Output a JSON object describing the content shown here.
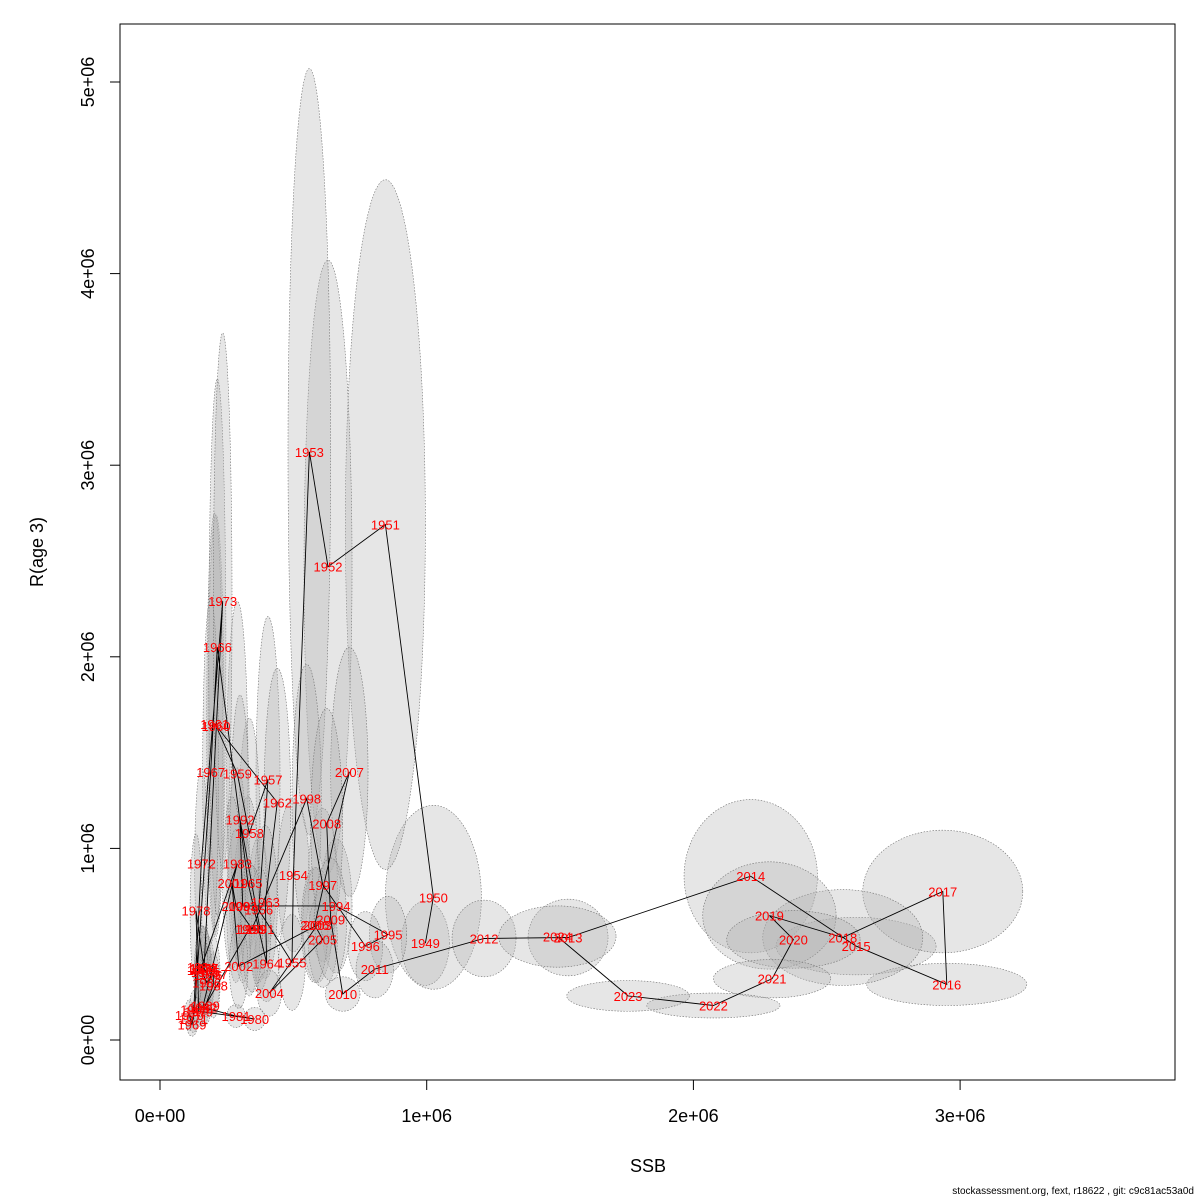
{
  "chart_data": {
    "type": "scatter",
    "title": "",
    "xlabel": "SSB",
    "ylabel": "R(age 3)",
    "xlim": [
      -150000,
      3800000
    ],
    "ylim": [
      -200000,
      5400000
    ],
    "x_ticks": [
      {
        "value": 0,
        "label": "0e+00"
      },
      {
        "value": 1000000,
        "label": "1e+06"
      },
      {
        "value": 2000000,
        "label": "2e+06"
      },
      {
        "value": 3000000,
        "label": "3e+06"
      }
    ],
    "y_ticks": [
      {
        "value": 0,
        "label": "0e+00"
      },
      {
        "value": 1000000,
        "label": "1e+06"
      },
      {
        "value": 2000000,
        "label": "2e+06"
      },
      {
        "value": 3000000,
        "label": "3e+06"
      },
      {
        "value": 4000000,
        "label": "4e+06"
      },
      {
        "value": 5000000,
        "label": "5e+06"
      }
    ],
    "grid": false,
    "legend": "none",
    "colors": {
      "label": "#ff0000",
      "line": "#000000",
      "ellipse_fill": "#b0b0b0",
      "ellipse_stroke": "#707070"
    },
    "points": [
      {
        "label": "1949",
        "x": 995000,
        "y": 505000,
        "rx": 90000,
        "ry": 220000
      },
      {
        "label": "1950",
        "x": 1025000,
        "y": 745000,
        "rx": 180000,
        "ry": 480000
      },
      {
        "label": "1951",
        "x": 845000,
        "y": 2690000,
        "rx": 150000,
        "ry": 1800000
      },
      {
        "label": "1952",
        "x": 630000,
        "y": 2470000,
        "rx": 90000,
        "ry": 1600000
      },
      {
        "label": "1953",
        "x": 560000,
        "y": 3070000,
        "rx": 80000,
        "ry": 2000000
      },
      {
        "label": "1954",
        "x": 500000,
        "y": 860000,
        "rx": 60000,
        "ry": 400000
      },
      {
        "label": "1955",
        "x": 495000,
        "y": 405000,
        "rx": 50000,
        "ry": 250000
      },
      {
        "label": "1956",
        "x": 370000,
        "y": 680000,
        "rx": 40000,
        "ry": 380000
      },
      {
        "label": "1957",
        "x": 405000,
        "y": 1360000,
        "rx": 45000,
        "ry": 850000
      },
      {
        "label": "1958",
        "x": 335000,
        "y": 1080000,
        "rx": 40000,
        "ry": 600000
      },
      {
        "label": "1959",
        "x": 290000,
        "y": 1390000,
        "rx": 40000,
        "ry": 900000
      },
      {
        "label": "1960",
        "x": 210000,
        "y": 1640000,
        "rx": 30000,
        "ry": 1100000
      },
      {
        "label": "1961",
        "x": 205000,
        "y": 1650000,
        "rx": 30000,
        "ry": 1100000
      },
      {
        "label": "1962",
        "x": 440000,
        "y": 1240000,
        "rx": 50000,
        "ry": 700000
      },
      {
        "label": "1963",
        "x": 395000,
        "y": 720000,
        "rx": 45000,
        "ry": 400000
      },
      {
        "label": "1964",
        "x": 400000,
        "y": 400000,
        "rx": 45000,
        "ry": 200000
      },
      {
        "label": "1965",
        "x": 330000,
        "y": 820000,
        "rx": 40000,
        "ry": 450000
      },
      {
        "label": "1966",
        "x": 215000,
        "y": 2050000,
        "rx": 32000,
        "ry": 1400000
      },
      {
        "label": "1967",
        "x": 190000,
        "y": 1400000,
        "rx": 30000,
        "ry": 900000
      },
      {
        "label": "1968",
        "x": 130000,
        "y": 160000,
        "rx": 20000,
        "ry": 100000
      },
      {
        "label": "1969",
        "x": 120000,
        "y": 80000,
        "rx": 20000,
        "ry": 60000
      },
      {
        "label": "1970",
        "x": 110000,
        "y": 130000,
        "rx": 18000,
        "ry": 80000
      },
      {
        "label": "1971",
        "x": 125000,
        "y": 110000,
        "rx": 18000,
        "ry": 70000
      },
      {
        "label": "1972",
        "x": 155000,
        "y": 920000,
        "rx": 25000,
        "ry": 500000
      },
      {
        "label": "1973",
        "x": 235000,
        "y": 2290000,
        "rx": 35000,
        "ry": 1400000
      },
      {
        "label": "1974",
        "x": 165000,
        "y": 370000,
        "rx": 25000,
        "ry": 220000
      },
      {
        "label": "1975",
        "x": 170000,
        "y": 355000,
        "rx": 25000,
        "ry": 200000
      },
      {
        "label": "1976",
        "x": 180000,
        "y": 340000,
        "rx": 25000,
        "ry": 200000
      },
      {
        "label": "1977",
        "x": 165000,
        "y": 375000,
        "rx": 25000,
        "ry": 220000
      },
      {
        "label": "1978",
        "x": 135000,
        "y": 675000,
        "rx": 22000,
        "ry": 400000
      },
      {
        "label": "1979",
        "x": 145000,
        "y": 150000,
        "rx": 20000,
        "ry": 80000
      },
      {
        "label": "1980",
        "x": 355000,
        "y": 110000,
        "rx": 40000,
        "ry": 60000
      },
      {
        "label": "1981",
        "x": 285000,
        "y": 125000,
        "rx": 35000,
        "ry": 60000
      },
      {
        "label": "1982",
        "x": 160000,
        "y": 170000,
        "rx": 22000,
        "ry": 100000
      },
      {
        "label": "1983",
        "x": 290000,
        "y": 920000,
        "rx": 35000,
        "ry": 500000
      },
      {
        "label": "1984",
        "x": 155000,
        "y": 380000,
        "rx": 25000,
        "ry": 220000
      },
      {
        "label": "1985",
        "x": 155000,
        "y": 365000,
        "rx": 25000,
        "ry": 200000
      },
      {
        "label": "1986",
        "x": 175000,
        "y": 300000,
        "rx": 25000,
        "ry": 180000
      },
      {
        "label": "1987",
        "x": 200000,
        "y": 345000,
        "rx": 25000,
        "ry": 200000
      },
      {
        "label": "1988",
        "x": 200000,
        "y": 285000,
        "rx": 25000,
        "ry": 170000
      },
      {
        "label": "1989",
        "x": 170000,
        "y": 180000,
        "rx": 22000,
        "ry": 100000
      },
      {
        "label": "1990",
        "x": 335000,
        "y": 580000,
        "rx": 40000,
        "ry": 350000
      },
      {
        "label": "1991",
        "x": 375000,
        "y": 580000,
        "rx": 40000,
        "ry": 320000
      },
      {
        "label": "1992",
        "x": 300000,
        "y": 1150000,
        "rx": 35000,
        "ry": 650000
      },
      {
        "label": "1993",
        "x": 310000,
        "y": 700000,
        "rx": 35000,
        "ry": 400000
      },
      {
        "label": "1994",
        "x": 660000,
        "y": 700000,
        "rx": 60000,
        "ry": 350000
      },
      {
        "label": "1995",
        "x": 855000,
        "y": 550000,
        "rx": 70000,
        "ry": 200000
      },
      {
        "label": "1996",
        "x": 770000,
        "y": 490000,
        "rx": 65000,
        "ry": 180000
      },
      {
        "label": "1997",
        "x": 610000,
        "y": 810000,
        "rx": 55000,
        "ry": 400000
      },
      {
        "label": "1998",
        "x": 550000,
        "y": 1260000,
        "rx": 55000,
        "ry": 700000
      },
      {
        "label": "1999",
        "x": 345000,
        "y": 580000,
        "rx": 40000,
        "ry": 330000
      },
      {
        "label": "2000",
        "x": 285000,
        "y": 700000,
        "rx": 35000,
        "ry": 400000
      },
      {
        "label": "2001",
        "x": 270000,
        "y": 820000,
        "rx": 35000,
        "ry": 450000
      },
      {
        "label": "2002",
        "x": 295000,
        "y": 385000,
        "rx": 35000,
        "ry": 220000
      },
      {
        "label": "2003",
        "x": 590000,
        "y": 600000,
        "rx": 55000,
        "ry": 300000
      },
      {
        "label": "2004",
        "x": 410000,
        "y": 245000,
        "rx": 45000,
        "ry": 120000
      },
      {
        "label": "2005",
        "x": 610000,
        "y": 525000,
        "rx": 55000,
        "ry": 250000
      },
      {
        "label": "2006",
        "x": 580000,
        "y": 600000,
        "rx": 50000,
        "ry": 300000
      },
      {
        "label": "2007",
        "x": 710000,
        "y": 1400000,
        "rx": 70000,
        "ry": 650000
      },
      {
        "label": "2008",
        "x": 625000,
        "y": 1130000,
        "rx": 60000,
        "ry": 600000
      },
      {
        "label": "2009",
        "x": 640000,
        "y": 630000,
        "rx": 60000,
        "ry": 320000
      },
      {
        "label": "2010",
        "x": 685000,
        "y": 240000,
        "rx": 65000,
        "ry": 90000
      },
      {
        "label": "2011",
        "x": 805000,
        "y": 370000,
        "rx": 70000,
        "ry": 150000
      },
      {
        "label": "2012",
        "x": 1215000,
        "y": 530000,
        "rx": 120000,
        "ry": 200000
      },
      {
        "label": "2013",
        "x": 1530000,
        "y": 535000,
        "rx": 150000,
        "ry": 200000
      },
      {
        "label": "2014",
        "x": 2215000,
        "y": 855000,
        "rx": 250000,
        "ry": 400000
      },
      {
        "label": "2015",
        "x": 2610000,
        "y": 490000,
        "rx": 300000,
        "ry": 150000
      },
      {
        "label": "2016",
        "x": 2950000,
        "y": 290000,
        "rx": 300000,
        "ry": 110000
      },
      {
        "label": "2017",
        "x": 2935000,
        "y": 775000,
        "rx": 300000,
        "ry": 320000
      },
      {
        "label": "2018",
        "x": 2560000,
        "y": 535000,
        "rx": 300000,
        "ry": 250000
      },
      {
        "label": "2019",
        "x": 2285000,
        "y": 650000,
        "rx": 250000,
        "ry": 280000
      },
      {
        "label": "2020",
        "x": 2375000,
        "y": 525000,
        "rx": 250000,
        "ry": 150000
      },
      {
        "label": "2021",
        "x": 2295000,
        "y": 320000,
        "rx": 220000,
        "ry": 100000
      },
      {
        "label": "2022",
        "x": 2075000,
        "y": 180000,
        "rx": 250000,
        "ry": 65000
      },
      {
        "label": "2023",
        "x": 1755000,
        "y": 230000,
        "rx": 230000,
        "ry": 80000
      },
      {
        "label": "2024",
        "x": 1490000,
        "y": 540000,
        "rx": 220000,
        "ry": 160000
      }
    ]
  },
  "footer": {
    "text": "stockassessment.org, fext, r18622 , git: c9c81ac53a0d"
  }
}
